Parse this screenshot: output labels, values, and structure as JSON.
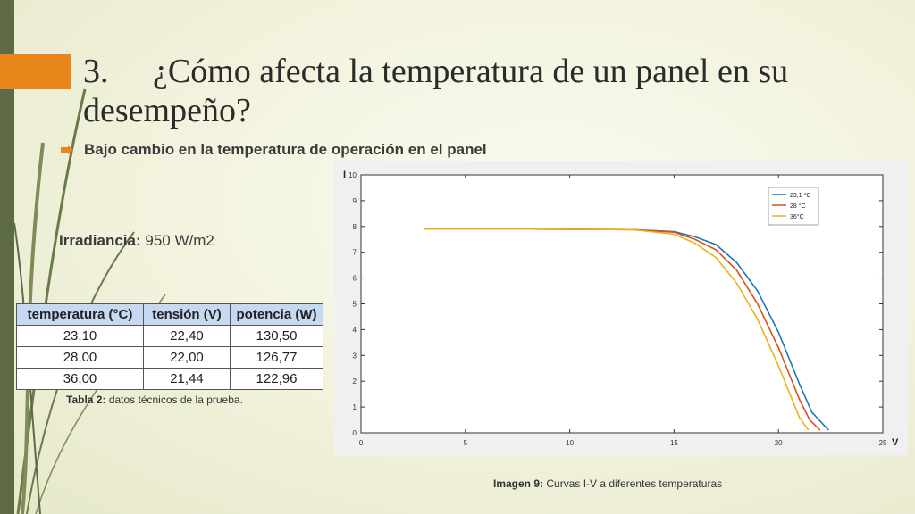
{
  "slide": {
    "title_number": "3.",
    "title_text": "¿Cómo afecta la temperatura de un panel en su desempeño?",
    "bullet": "Bajo cambio en la temperatura de operación en el panel",
    "irradiance_label": "Irradiancia:",
    "irradiance_value": "950 W/m2",
    "table_caption_bold": "Tabla 2:",
    "table_caption": "datos técnicos de la prueba.",
    "image_caption_bold": "Imagen 9:",
    "image_caption": "Curvas I-V a diferentes temperaturas",
    "accent_color": "#e8861c",
    "bar_color": "#5c6b45"
  },
  "table": {
    "headers": [
      "temperatura (°C)",
      "tensión (V)",
      "potencia (W)"
    ],
    "rows": [
      [
        "23,10",
        "22,40",
        "130,50"
      ],
      [
        "28,00",
        "22,00",
        "126,77"
      ],
      [
        "36,00",
        "21,44",
        "122,96"
      ]
    ]
  },
  "chart_data": {
    "type": "line",
    "xlabel": "V",
    "ylabel": "I",
    "xlim": [
      0,
      25
    ],
    "ylim": [
      0,
      10
    ],
    "xticks": [
      0,
      5,
      10,
      15,
      20,
      25
    ],
    "yticks": [
      0,
      1,
      2,
      3,
      4,
      5,
      6,
      7,
      8,
      9,
      10
    ],
    "legend_position": "top-right",
    "series": [
      {
        "name": "23,1 °C",
        "color": "#1f77b4",
        "x": [
          3,
          8,
          13,
          15,
          16,
          17,
          18,
          19,
          20,
          21,
          21.6,
          22.4
        ],
        "y": [
          7.9,
          7.9,
          7.88,
          7.8,
          7.6,
          7.3,
          6.6,
          5.5,
          3.9,
          1.9,
          0.8,
          0.1
        ]
      },
      {
        "name": "28 °C",
        "color": "#d95319",
        "x": [
          3,
          8,
          13,
          15,
          16,
          17,
          18,
          19,
          20,
          21,
          21.5,
          22.0
        ],
        "y": [
          7.9,
          7.9,
          7.88,
          7.78,
          7.5,
          7.1,
          6.3,
          5.0,
          3.3,
          1.3,
          0.5,
          0.1
        ]
      },
      {
        "name": "36°C",
        "color": "#edb120",
        "x": [
          3,
          8,
          13,
          15,
          16,
          17,
          18,
          19,
          20,
          21,
          21.44
        ],
        "y": [
          7.9,
          7.9,
          7.88,
          7.7,
          7.35,
          6.8,
          5.8,
          4.4,
          2.6,
          0.6,
          0.1
        ]
      }
    ]
  }
}
